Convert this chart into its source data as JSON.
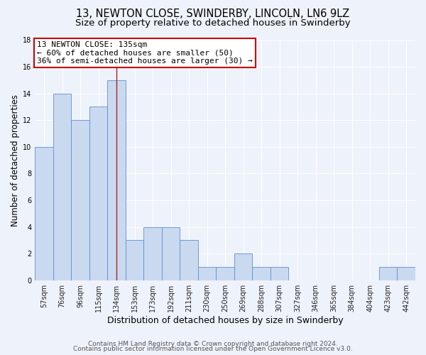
{
  "title": "13, NEWTON CLOSE, SWINDERBY, LINCOLN, LN6 9LZ",
  "subtitle": "Size of property relative to detached houses in Swinderby",
  "xlabel": "Distribution of detached houses by size in Swinderby",
  "ylabel": "Number of detached properties",
  "bin_labels": [
    "57sqm",
    "76sqm",
    "96sqm",
    "115sqm",
    "134sqm",
    "153sqm",
    "173sqm",
    "192sqm",
    "211sqm",
    "230sqm",
    "250sqm",
    "269sqm",
    "288sqm",
    "307sqm",
    "327sqm",
    "346sqm",
    "365sqm",
    "384sqm",
    "404sqm",
    "423sqm",
    "442sqm"
  ],
  "bar_values": [
    10,
    14,
    12,
    13,
    15,
    3,
    4,
    4,
    3,
    1,
    1,
    2,
    1,
    1,
    0,
    0,
    0,
    0,
    0,
    1,
    1
  ],
  "bar_color": "#c9d9f0",
  "bar_edge_color": "#6090d0",
  "annotation_box_line1": "13 NEWTON CLOSE: 135sqm",
  "annotation_box_line2": "← 60% of detached houses are smaller (50)",
  "annotation_box_line3": "36% of semi-detached houses are larger (30) →",
  "annotation_box_color": "#ffffff",
  "annotation_box_edge_color": "#cc0000",
  "property_line_x": 4.5,
  "ylim": [
    0,
    18
  ],
  "yticks": [
    0,
    2,
    4,
    6,
    8,
    10,
    12,
    14,
    16,
    18
  ],
  "footer_line1": "Contains HM Land Registry data © Crown copyright and database right 2024.",
  "footer_line2": "Contains public sector information licensed under the Open Government Licence v3.0.",
  "bg_color": "#eef2fb",
  "grid_color": "#ffffff",
  "title_fontsize": 10.5,
  "subtitle_fontsize": 9.5,
  "xlabel_fontsize": 9,
  "ylabel_fontsize": 8.5,
  "tick_fontsize": 7,
  "annotation_fontsize": 8,
  "footer_fontsize": 6.5
}
